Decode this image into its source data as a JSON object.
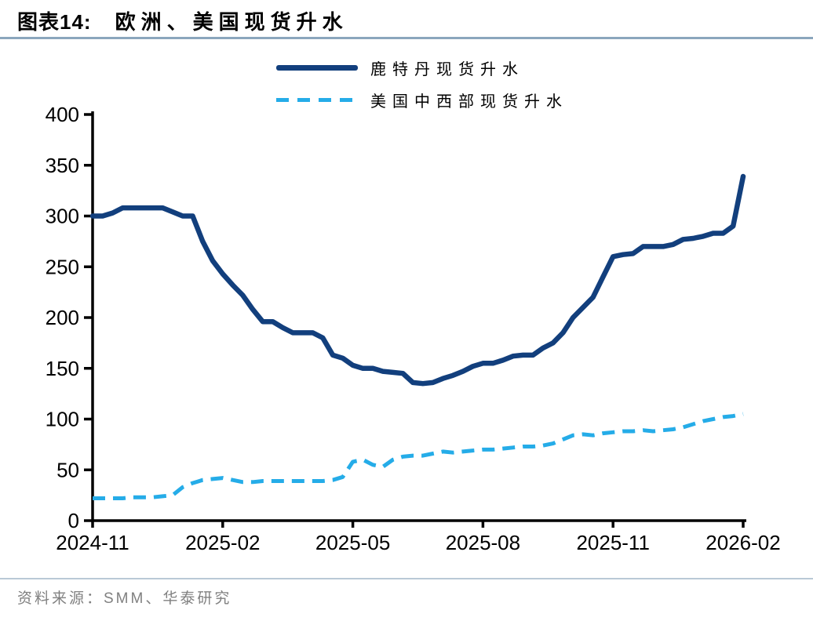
{
  "header": {
    "label": "图表14:",
    "title": "欧洲、美国现货升水"
  },
  "source": "资料来源：SMM、华泰研究",
  "colors": {
    "navy": "#123f7d",
    "sky": "#25ace8",
    "title_rule": "#8ba6bd",
    "source_rule": "#b9c9d6",
    "axis": "#000000",
    "source_text": "#808080"
  },
  "chart_data": {
    "type": "line",
    "title": "图表14: 欧洲、美国现货升水",
    "xlabel": "",
    "ylabel": "",
    "ylim": [
      0,
      400
    ],
    "y_ticks": [
      0,
      50,
      100,
      150,
      200,
      250,
      300,
      350,
      400
    ],
    "x_tick_labels": [
      "2024-11",
      "2025-02",
      "2025-05",
      "2025-08",
      "2025-11",
      "2026-02"
    ],
    "x_tick_indices": [
      0,
      13,
      26,
      39,
      52,
      65
    ],
    "grid": false,
    "legend_position": "top-center",
    "series": [
      {
        "name": "鹿特丹现货升水",
        "color": "#123f7d",
        "style": "solid",
        "values": [
          300,
          300,
          303,
          308,
          308,
          308,
          308,
          308,
          304,
          300,
          300,
          275,
          256,
          243,
          232,
          222,
          208,
          196,
          196,
          190,
          185,
          185,
          185,
          180,
          163,
          160,
          153,
          150,
          150,
          147,
          146,
          145,
          136,
          135,
          136,
          140,
          143,
          147,
          152,
          155,
          155,
          158,
          162,
          163,
          163,
          170,
          175,
          185,
          200,
          210,
          220,
          240,
          260,
          262,
          263,
          270,
          270,
          270,
          272,
          277,
          278,
          280,
          283,
          283,
          290,
          339
        ]
      },
      {
        "name": "美国中西部现货升水",
        "color": "#25ace8",
        "style": "dashed",
        "values": [
          22,
          22,
          22,
          22,
          23,
          23,
          23,
          24,
          25,
          33,
          37,
          40,
          41,
          42,
          40,
          38,
          38,
          39,
          39,
          39,
          39,
          39,
          39,
          39,
          40,
          43,
          58,
          60,
          55,
          53,
          60,
          63,
          64,
          64,
          66,
          68,
          67,
          68,
          69,
          70,
          70,
          71,
          72,
          73,
          73,
          74,
          76,
          80,
          84,
          85,
          84,
          86,
          87,
          88,
          88,
          89,
          88,
          89,
          90,
          92,
          95,
          98,
          100,
          102,
          103,
          105
        ]
      }
    ]
  }
}
